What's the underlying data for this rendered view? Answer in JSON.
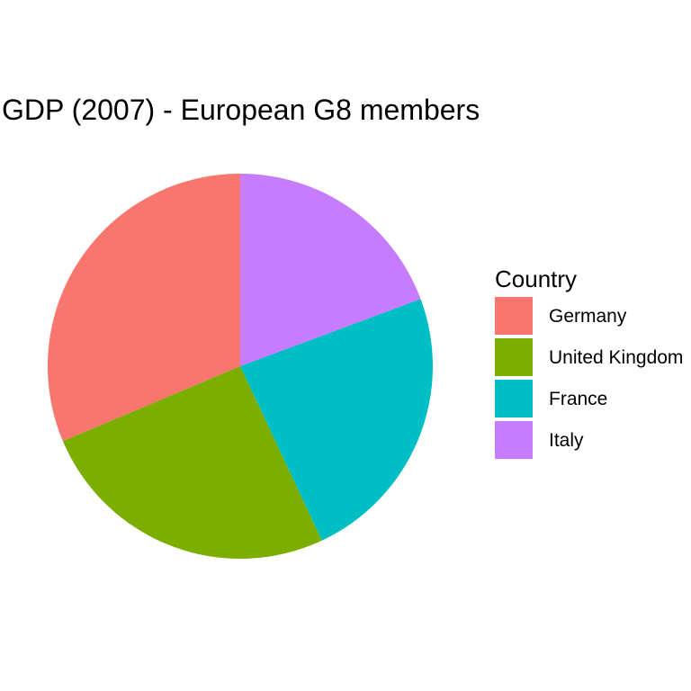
{
  "chart_data": {
    "type": "pie",
    "title": "GDP (2007) - European G8 members",
    "legend_title": "Country",
    "legend_position": "right",
    "categories": [
      "Germany",
      "United Kingdom",
      "France",
      "Italy"
    ],
    "values": [
      3.44,
      2.81,
      2.6,
      2.12
    ],
    "colors": [
      "#F8766D",
      "#7CAE00",
      "#00BFC4",
      "#C77CFF"
    ]
  }
}
